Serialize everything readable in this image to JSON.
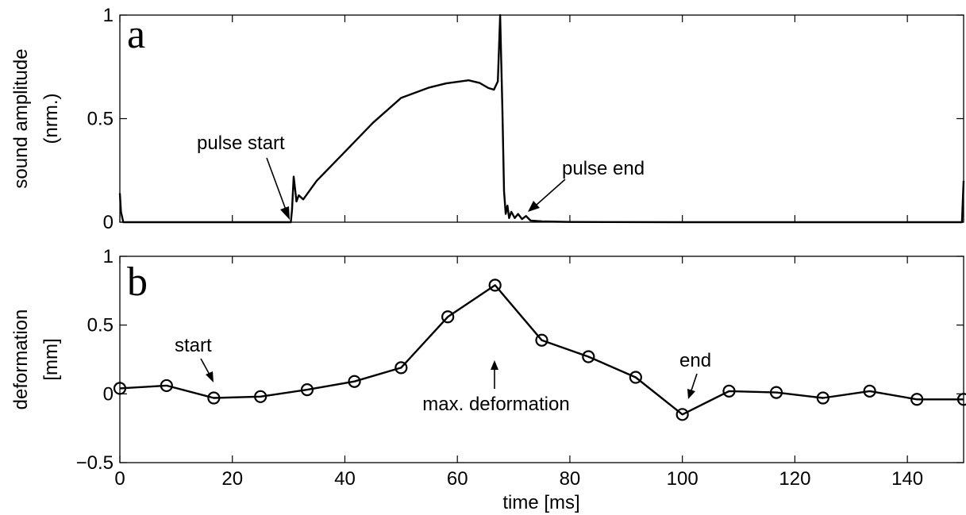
{
  "chart_data": [
    {
      "panel": "a",
      "type": "line",
      "title": "",
      "xlabel": "",
      "ylabel_lines": [
        "sound amplitude",
        "(nrm.)"
      ],
      "xlim": [
        0,
        150
      ],
      "ylim": [
        0,
        1
      ],
      "yticks": [
        0,
        0.5,
        1
      ],
      "ytick_labels": [
        "0",
        "0.5",
        "1"
      ],
      "xtick_labels_shown": false,
      "grid": false,
      "series": [
        {
          "x": [
            0,
            0.2,
            0.6,
            30.4,
            30.6,
            30.9,
            31.4,
            31.8,
            32.6,
            35,
            40,
            45,
            50,
            55,
            58,
            62,
            64,
            65.5,
            66.5,
            67.2,
            67.6,
            68.0,
            68.3,
            68.6,
            68.9,
            69.2,
            69.6,
            70.2,
            70.8,
            71.5,
            72.2,
            73,
            75,
            80,
            100,
            149.7,
            150
          ],
          "y": [
            0.14,
            0.05,
            0.0,
            0.0,
            0.06,
            0.22,
            0.1,
            0.13,
            0.11,
            0.2,
            0.34,
            0.48,
            0.6,
            0.65,
            0.67,
            0.685,
            0.672,
            0.648,
            0.64,
            0.68,
            1.0,
            0.55,
            0.15,
            0.04,
            0.08,
            0.02,
            0.05,
            0.02,
            0.04,
            0.015,
            0.03,
            0.008,
            0.004,
            0.001,
            0.0,
            0.0,
            0.2
          ]
        }
      ],
      "annotations": [
        {
          "text": "pulse start",
          "target_x": 31,
          "target_y": 0.0
        },
        {
          "text": "pulse end",
          "target_x": 72,
          "target_y": 0.02
        }
      ]
    },
    {
      "panel": "b",
      "type": "line",
      "title": "",
      "xlabel": "time [ms]",
      "ylabel_lines": [
        "deformation",
        "[mm]"
      ],
      "xlim": [
        0,
        150
      ],
      "ylim": [
        -0.5,
        1
      ],
      "xticks": [
        0,
        20,
        40,
        60,
        80,
        100,
        120,
        140
      ],
      "xtick_labels": [
        "0",
        "20",
        "40",
        "60",
        "80",
        "100",
        "120",
        "140"
      ],
      "yticks": [
        -0.5,
        0,
        0.5,
        1
      ],
      "ytick_labels": [
        "−0.5",
        "0",
        "0.5",
        "1"
      ],
      "grid": false,
      "marker": "open-circle",
      "series": [
        {
          "x": [
            0,
            8.3,
            16.7,
            25,
            33.3,
            41.7,
            50,
            58.3,
            66.7,
            75,
            83.3,
            91.7,
            100,
            108.3,
            116.7,
            125,
            133.3,
            141.7,
            150
          ],
          "y": [
            0.04,
            0.06,
            -0.03,
            -0.02,
            0.03,
            0.09,
            0.19,
            0.56,
            0.79,
            0.39,
            0.27,
            0.12,
            -0.15,
            0.02,
            0.01,
            -0.03,
            0.02,
            -0.04,
            -0.04
          ]
        }
      ],
      "annotations": [
        {
          "text": "start",
          "target_x": 16.7,
          "target_y": -0.03
        },
        {
          "text": "max. deformation",
          "target_x": 66.7,
          "target_y": 0.1
        },
        {
          "text": "end",
          "target_x": 100,
          "target_y": -0.15
        }
      ]
    }
  ]
}
